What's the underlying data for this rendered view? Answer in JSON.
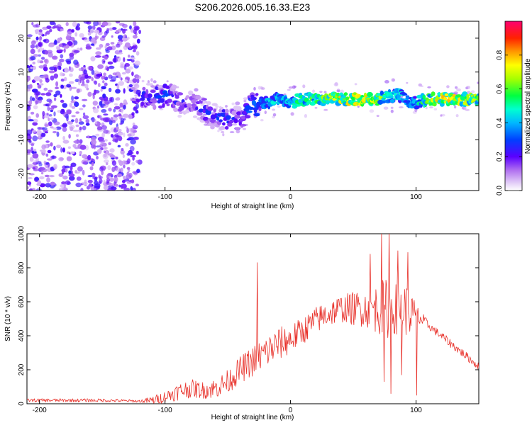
{
  "title": "S206.2026.005.16.33.E23",
  "colors": {
    "line": "#e8322b",
    "axis": "#000000",
    "background": "#ffffff"
  },
  "chart_data": [
    {
      "type": "heatmap",
      "xlabel": "Height of straight line (km)",
      "ylabel": "Frequency (Hz)",
      "xlim": [
        -210,
        150
      ],
      "ylim": [
        -25,
        25
      ],
      "x_ticks": [
        -200,
        -100,
        0,
        100
      ],
      "y_ticks": [
        -20,
        -10,
        0,
        10,
        20
      ],
      "colorbar": {
        "label": "Normalized spectral amplitude",
        "range": [
          0.0,
          1.0
        ],
        "ticks": [
          0.0,
          0.2,
          0.4,
          0.6,
          0.8
        ],
        "tick_labels": [
          "0.0",
          "0.2",
          "0.4",
          "0.6",
          "0.8"
        ],
        "colormap": [
          "#ffffff",
          "#c9a6f0",
          "#8a3df0",
          "#3a00ff",
          "#0050ff",
          "#00e0ff",
          "#00ff60",
          "#c8ff00",
          "#ffcc00",
          "#ff3300",
          "#ff0066"
        ]
      },
      "ridge": {
        "x": [
          -115,
          -100,
          -90,
          -80,
          -70,
          -60,
          -50,
          -40,
          -35,
          -30,
          -20,
          -10,
          0,
          10,
          20,
          30,
          40,
          50,
          60,
          70,
          80,
          90,
          95,
          100,
          110,
          120,
          130,
          140,
          150
        ],
        "frequency": [
          3,
          3,
          2,
          1,
          -1,
          -3,
          -4,
          -4,
          -1,
          0,
          1,
          2,
          1,
          2,
          2,
          2,
          2,
          2,
          2,
          2,
          3,
          3,
          1,
          1,
          2,
          2,
          2,
          2,
          2
        ],
        "amplitude": [
          0.3,
          0.35,
          0.3,
          0.25,
          0.3,
          0.3,
          0.35,
          0.3,
          0.35,
          0.4,
          0.45,
          0.5,
          0.5,
          0.6,
          0.6,
          0.7,
          0.8,
          0.85,
          0.8,
          0.7,
          0.5,
          0.5,
          0.4,
          0.5,
          0.7,
          0.8,
          0.85,
          0.75,
          0.7
        ]
      },
      "noise_region_x": [
        -210,
        -120
      ],
      "noise_amplitude_range": [
        0.05,
        0.25
      ]
    },
    {
      "type": "line",
      "xlabel": "Height of straight line (km)",
      "ylabel": "SNR (10 * v/v)",
      "xlim": [
        -210,
        150
      ],
      "ylim": [
        0,
        1000
      ],
      "x_ticks": [
        -200,
        -100,
        0,
        100
      ],
      "y_ticks": [
        0,
        200,
        400,
        600,
        800,
        1000
      ],
      "series": [
        {
          "name": "SNR",
          "envelope_x": [
            -210,
            -180,
            -150,
            -120,
            -110,
            -100,
            -90,
            -80,
            -70,
            -60,
            -50,
            -40,
            -30,
            -20,
            -10,
            0,
            10,
            20,
            30,
            40,
            50,
            60,
            70,
            75,
            80,
            85,
            90,
            95,
            100,
            110,
            120,
            130,
            140,
            150
          ],
          "envelope_mean": [
            20,
            20,
            20,
            15,
            20,
            40,
            70,
            90,
            80,
            90,
            130,
            200,
            250,
            300,
            350,
            380,
            430,
            490,
            530,
            560,
            560,
            560,
            560,
            560,
            560,
            560,
            560,
            540,
            520,
            460,
            400,
            340,
            280,
            220
          ],
          "noise_amplitude": [
            10,
            10,
            10,
            8,
            25,
            35,
            50,
            55,
            50,
            60,
            70,
            80,
            90,
            100,
            100,
            90,
            80,
            80,
            80,
            80,
            100,
            110,
            150,
            180,
            170,
            150,
            160,
            150,
            70,
            25,
            25,
            25,
            25,
            25
          ]
        }
      ],
      "peaks": [
        {
          "x": -26.5,
          "value": 830
        },
        {
          "x": 63.5,
          "value": 880
        },
        {
          "x": 72.5,
          "value": 1000
        },
        {
          "x": 78.5,
          "value": 1020
        },
        {
          "x": 85.5,
          "value": 900
        },
        {
          "x": 93.5,
          "value": 890
        }
      ],
      "dips": [
        {
          "x": 74.5,
          "value": 130
        },
        {
          "x": 80.0,
          "value": 60
        },
        {
          "x": 88.5,
          "value": 170
        },
        {
          "x": 100.5,
          "value": 50
        }
      ]
    }
  ]
}
